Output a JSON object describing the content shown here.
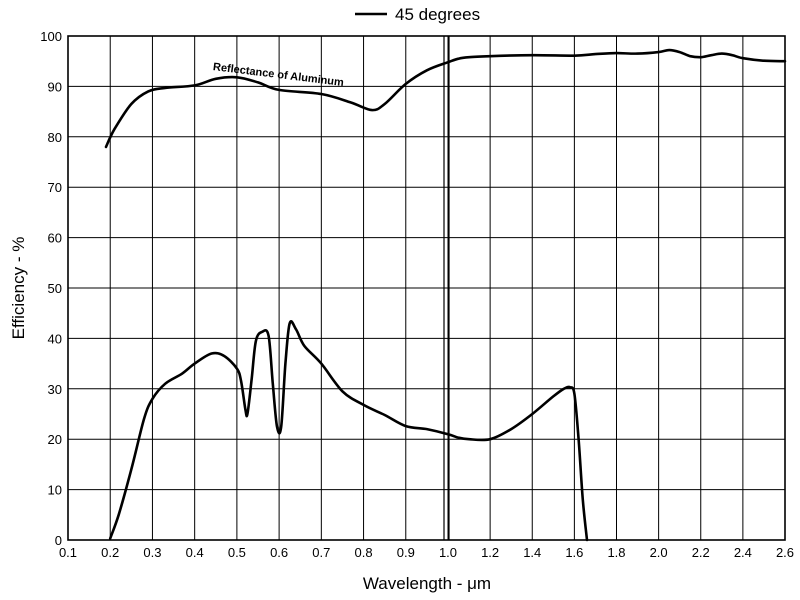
{
  "chart_data": {
    "type": "line",
    "title": "",
    "xlabel": "Wavelength - μm",
    "ylabel": "Efficiency - %",
    "xlim": [
      0.1,
      2.6
    ],
    "ylim": [
      0,
      100
    ],
    "grid": true,
    "legend": {
      "placement": "top-center",
      "entries": [
        "45 degrees"
      ]
    },
    "x_ticks": [
      {
        "value": 0.1,
        "label": "0.1"
      },
      {
        "value": 0.2,
        "label": "0.2"
      },
      {
        "value": 0.3,
        "label": "0.3"
      },
      {
        "value": 0.4,
        "label": "0.4"
      },
      {
        "value": 0.5,
        "label": "0.5"
      },
      {
        "value": 0.6,
        "label": "0.6"
      },
      {
        "value": 0.7,
        "label": "0.7"
      },
      {
        "value": 0.8,
        "label": "0.8"
      },
      {
        "value": 0.9,
        "label": "0.9"
      },
      {
        "value": 1.0,
        "label": "1.0"
      },
      {
        "value": 1.2,
        "label": "1.2"
      },
      {
        "value": 1.4,
        "label": "1.4"
      },
      {
        "value": 1.6,
        "label": "1.6"
      },
      {
        "value": 1.8,
        "label": "1.8"
      },
      {
        "value": 2.0,
        "label": "2.0"
      },
      {
        "value": 2.2,
        "label": "2.2"
      },
      {
        "value": 2.4,
        "label": "2.4"
      },
      {
        "value": 2.6,
        "label": "2.6"
      }
    ],
    "y_ticks": [
      {
        "value": 0,
        "label": "0"
      },
      {
        "value": 10,
        "label": "10"
      },
      {
        "value": 20,
        "label": "20"
      },
      {
        "value": 30,
        "label": "30"
      },
      {
        "value": 40,
        "label": "40"
      },
      {
        "value": 50,
        "label": "50"
      },
      {
        "value": 60,
        "label": "60"
      },
      {
        "value": 70,
        "label": "70"
      },
      {
        "value": 80,
        "label": "80"
      },
      {
        "value": 90,
        "label": "90"
      },
      {
        "value": 100,
        "label": "100"
      }
    ],
    "annotations": [
      {
        "text": "Reflectance of Aluminum",
        "x": 0.6,
        "y": 93
      }
    ],
    "series": [
      {
        "name": "Reflectance of Aluminum",
        "points": [
          [
            0.19,
            78
          ],
          [
            0.21,
            81.5
          ],
          [
            0.25,
            86.5
          ],
          [
            0.29,
            89
          ],
          [
            0.33,
            89.7
          ],
          [
            0.4,
            90.2
          ],
          [
            0.45,
            91.5
          ],
          [
            0.5,
            91.8
          ],
          [
            0.55,
            90.8
          ],
          [
            0.6,
            89.3
          ],
          [
            0.7,
            88.5
          ],
          [
            0.77,
            86.8
          ],
          [
            0.82,
            85.3
          ],
          [
            0.85,
            86.5
          ],
          [
            0.9,
            90.5
          ],
          [
            0.95,
            93.2
          ],
          [
            1.0,
            94.8
          ],
          [
            1.05,
            95.5
          ],
          [
            1.1,
            95.8
          ],
          [
            1.2,
            96
          ],
          [
            1.4,
            96.2
          ],
          [
            1.6,
            96.1
          ],
          [
            1.7,
            96.4
          ],
          [
            1.8,
            96.6
          ],
          [
            1.9,
            96.5
          ],
          [
            2.0,
            96.8
          ],
          [
            2.05,
            97.2
          ],
          [
            2.1,
            96.8
          ],
          [
            2.15,
            96
          ],
          [
            2.2,
            95.8
          ],
          [
            2.25,
            96.2
          ],
          [
            2.3,
            96.5
          ],
          [
            2.35,
            96.2
          ],
          [
            2.4,
            95.6
          ],
          [
            2.5,
            95.1
          ],
          [
            2.6,
            95
          ]
        ]
      },
      {
        "name": "45 degrees",
        "points": [
          [
            0.2,
            0.3
          ],
          [
            0.22,
            5
          ],
          [
            0.25,
            14
          ],
          [
            0.28,
            24
          ],
          [
            0.3,
            28
          ],
          [
            0.33,
            31
          ],
          [
            0.37,
            33
          ],
          [
            0.4,
            35
          ],
          [
            0.44,
            37
          ],
          [
            0.47,
            36.5
          ],
          [
            0.5,
            34
          ],
          [
            0.51,
            31.5
          ],
          [
            0.52,
            26
          ],
          [
            0.525,
            25
          ],
          [
            0.535,
            32
          ],
          [
            0.545,
            39.5
          ],
          [
            0.56,
            41.3
          ],
          [
            0.575,
            40.5
          ],
          [
            0.585,
            31
          ],
          [
            0.595,
            22.5
          ],
          [
            0.605,
            22.5
          ],
          [
            0.615,
            35
          ],
          [
            0.625,
            43
          ],
          [
            0.64,
            41.8
          ],
          [
            0.66,
            38.5
          ],
          [
            0.7,
            35
          ],
          [
            0.75,
            29.5
          ],
          [
            0.8,
            26.8
          ],
          [
            0.85,
            24.8
          ],
          [
            0.9,
            22.6
          ],
          [
            0.95,
            22
          ],
          [
            1.0,
            21
          ],
          [
            1.05,
            20.3
          ],
          [
            1.1,
            20
          ],
          [
            1.2,
            20
          ],
          [
            1.3,
            22
          ],
          [
            1.4,
            25
          ],
          [
            1.5,
            28.5
          ],
          [
            1.55,
            30
          ],
          [
            1.58,
            30.3
          ],
          [
            1.6,
            29
          ],
          [
            1.62,
            20
          ],
          [
            1.64,
            8
          ],
          [
            1.66,
            0
          ]
        ]
      }
    ]
  }
}
